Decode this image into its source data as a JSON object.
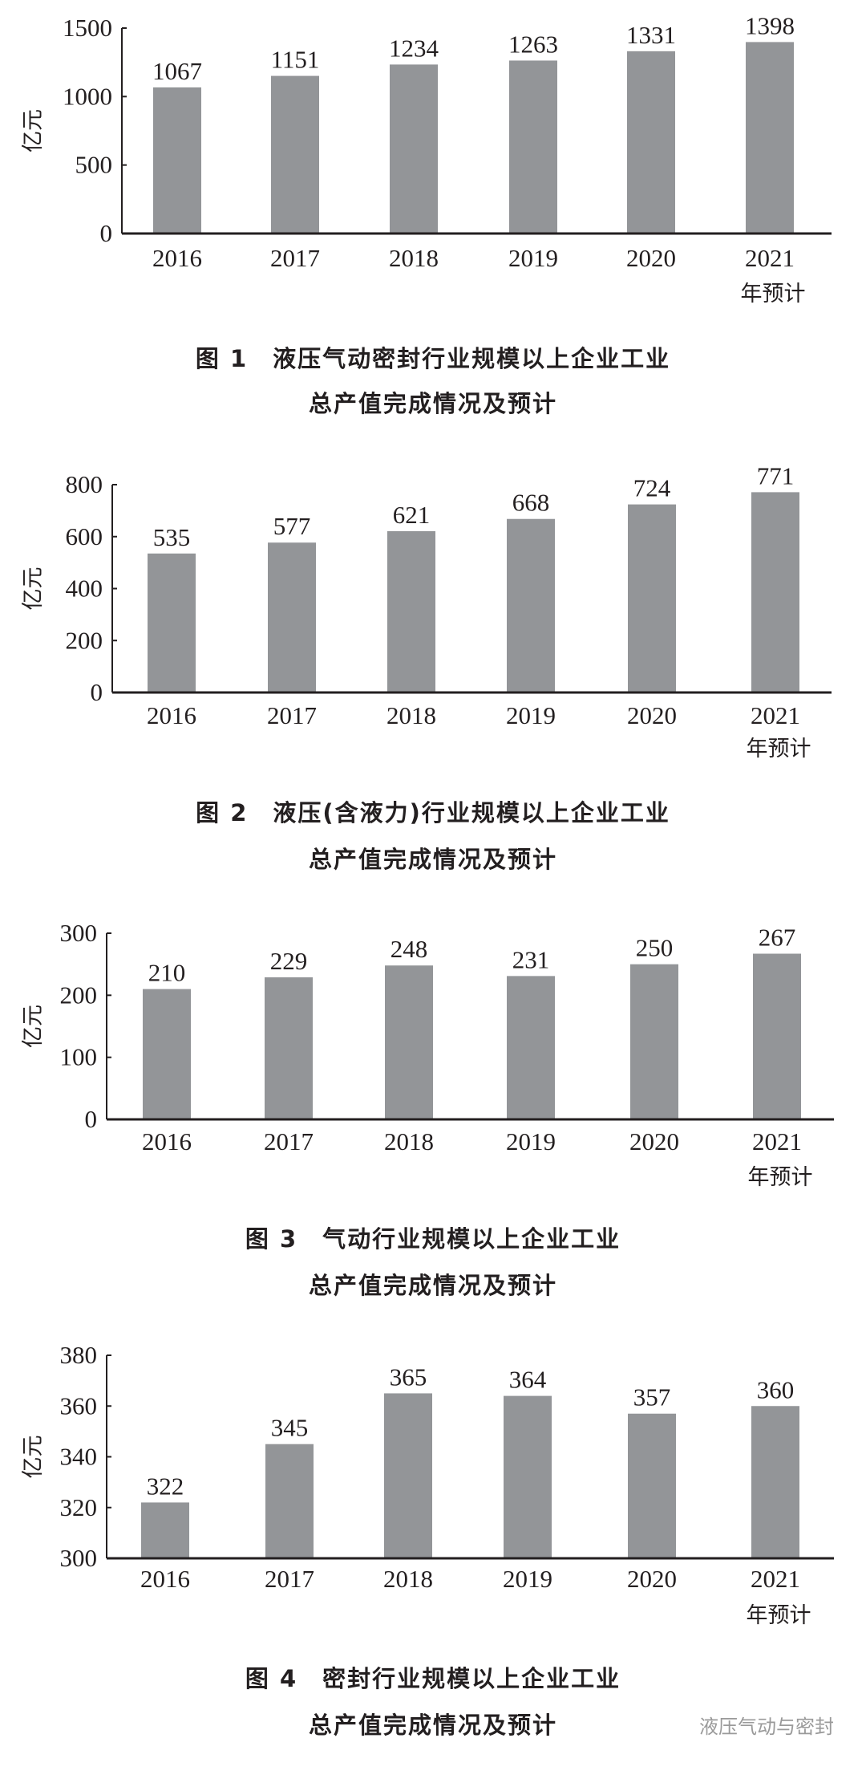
{
  "bar_color": "#939598",
  "watermark": "液压气动与密封",
  "chart_data": [
    {
      "type": "bar",
      "ylabel": "亿元",
      "categories": [
        "2016",
        "2017",
        "2018",
        "2019",
        "2020",
        "2021"
      ],
      "category_sublabel": "年预计",
      "values": [
        1067,
        1151,
        1234,
        1263,
        1331,
        1398
      ],
      "ylim": [
        0,
        1500
      ],
      "yticks": [
        0,
        500,
        1000,
        1500
      ],
      "title": [
        "图 1　液压气动密封行业规模以上企业工业",
        "总产值完成情况及预计"
      ]
    },
    {
      "type": "bar",
      "ylabel": "亿元",
      "categories": [
        "2016",
        "2017",
        "2018",
        "2019",
        "2020",
        "2021"
      ],
      "category_sublabel": "年预计",
      "values": [
        535,
        577,
        621,
        668,
        724,
        771
      ],
      "ylim": [
        0,
        800
      ],
      "yticks": [
        0,
        200,
        400,
        600,
        800
      ],
      "title": [
        "图 2　液压(含液力)行业规模以上企业工业",
        "总产值完成情况及预计"
      ]
    },
    {
      "type": "bar",
      "ylabel": "亿元",
      "categories": [
        "2016",
        "2017",
        "2018",
        "2019",
        "2020",
        "2021"
      ],
      "category_sublabel": "年预计",
      "values": [
        210,
        229,
        248,
        231,
        250,
        267
      ],
      "ylim": [
        0,
        300
      ],
      "yticks": [
        0,
        100,
        200,
        300
      ],
      "title": [
        "图 3　气动行业规模以上企业工业",
        "总产值完成情况及预计"
      ]
    },
    {
      "type": "bar",
      "ylabel": "亿元",
      "categories": [
        "2016",
        "2017",
        "2018",
        "2019",
        "2020",
        "2021"
      ],
      "category_sublabel": "年预计",
      "values": [
        322,
        345,
        365,
        364,
        357,
        360
      ],
      "ylim": [
        300,
        380
      ],
      "yticks": [
        300,
        320,
        340,
        360,
        380
      ],
      "title": [
        "图 4　密封行业规模以上企业工业",
        "总产值完成情况及预计"
      ]
    }
  ]
}
